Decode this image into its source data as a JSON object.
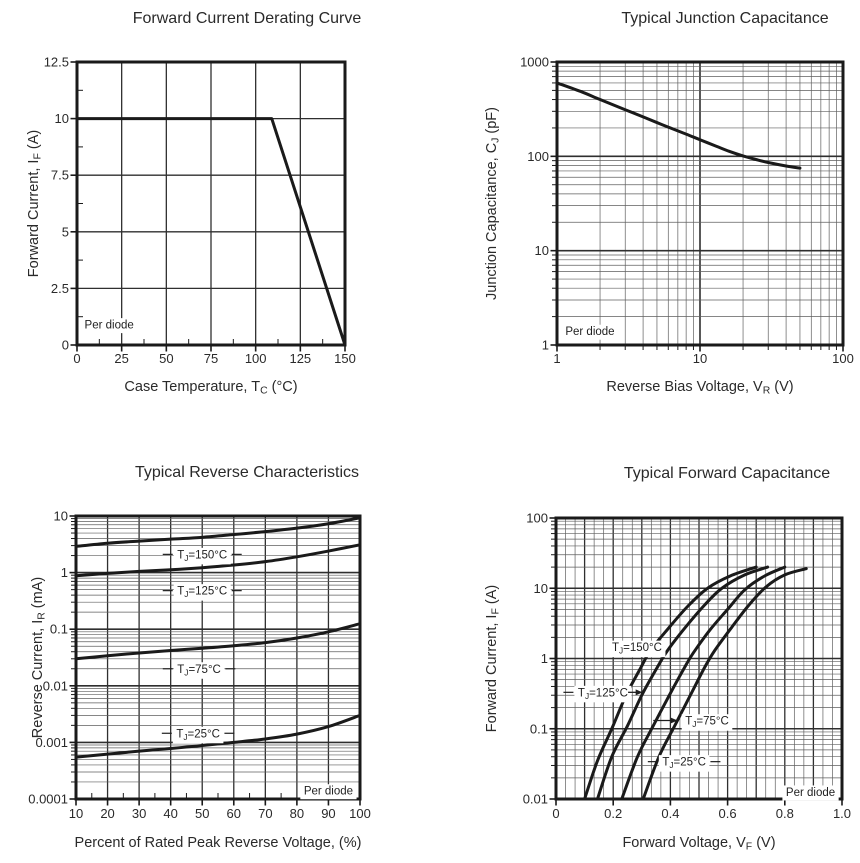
{
  "page": {
    "background": "#ffffff",
    "ink": "#1a1a1a",
    "text_color": "#2a2a2a",
    "grid_major_color": "#2f2f2f",
    "grid_minor_color": "#5f5f5f",
    "note_label": "Per diode"
  },
  "chart_data": [
    {
      "id": "derating",
      "type": "line",
      "title": "Forward Current Derating Curve",
      "xlabel": "Case Temperature, T_C_ (°C)",
      "ylabel": "Forward Current, I_F_ (A)",
      "x": {
        "scale": "linear",
        "min": 0,
        "max": 150,
        "tick_vals": [
          0,
          25,
          50,
          75,
          100,
          125,
          150
        ],
        "tick_labels": [
          "0",
          "25",
          "50",
          "75",
          "100",
          "125",
          "150"
        ],
        "minor_mid": true
      },
      "y": {
        "scale": "linear",
        "min": 0,
        "max": 12.5,
        "tick_vals": [
          0,
          2.5,
          5,
          7.5,
          10,
          12.5
        ],
        "tick_labels": [
          "0",
          "2.5",
          "5",
          "7.5",
          "10",
          "12.5"
        ],
        "minor_mid": true
      },
      "series": [
        {
          "name": "derating-line",
          "smooth": false,
          "points": [
            [
              0,
              10
            ],
            [
              109,
              10
            ],
            [
              150,
              0
            ]
          ]
        }
      ],
      "annotations": [
        {
          "text": "Per diode",
          "x": 18,
          "y": 0.9,
          "box": true
        }
      ]
    },
    {
      "id": "junction-capacitance",
      "type": "line",
      "title": "Typical Junction Capacitance",
      "xlabel": "Reverse Bias Voltage, V_R_ (V)",
      "ylabel": "Junction Capacitance, C_J_ (pF)",
      "x": {
        "scale": "log",
        "min": 1,
        "max": 100,
        "tick_vals": [
          1,
          10,
          100
        ],
        "tick_labels": [
          "1",
          "10",
          "100"
        ]
      },
      "y": {
        "scale": "log",
        "min": 1,
        "max": 1000,
        "tick_vals": [
          1,
          10,
          100,
          1000
        ],
        "tick_labels": [
          "1",
          "10",
          "100",
          "1000"
        ]
      },
      "series": [
        {
          "name": "cj-curve",
          "smooth": true,
          "points": [
            [
              1,
              600
            ],
            [
              1.5,
              480
            ],
            [
              2,
              400
            ],
            [
              3,
              312
            ],
            [
              4,
              262
            ],
            [
              5,
              228
            ],
            [
              6,
              204
            ],
            [
              8,
              172
            ],
            [
              10,
              150
            ],
            [
              13,
              128
            ],
            [
              16,
              113
            ],
            [
              20,
              101
            ],
            [
              25,
              92
            ],
            [
              30,
              86
            ],
            [
              40,
              79
            ],
            [
              50,
              75
            ]
          ]
        }
      ],
      "annotations": [
        {
          "text": "Per diode",
          "x": 1.7,
          "y": 1.4,
          "box": true
        }
      ]
    },
    {
      "id": "reverse-characteristics",
      "type": "line",
      "title": "Typical Reverse Characteristics",
      "xlabel": "Percent of Rated Peak Reverse Voltage, (%)",
      "ylabel": "Reverse Current, I_R_ (mA)",
      "x": {
        "scale": "linear",
        "min": 10,
        "max": 100,
        "tick_vals": [
          10,
          20,
          30,
          40,
          50,
          60,
          70,
          80,
          90,
          100
        ],
        "tick_labels": [
          "10",
          "20",
          "30",
          "40",
          "50",
          "60",
          "70",
          "80",
          "90",
          "100"
        ],
        "minor_mid": true
      },
      "y": {
        "scale": "log",
        "min": 0.0001,
        "max": 10,
        "tick_vals": [
          10,
          1,
          0.1,
          0.01,
          0.001,
          0.0001
        ],
        "tick_labels": [
          "10",
          "1",
          "0.1",
          "0.01",
          "0.001",
          "0.0001"
        ]
      },
      "series": [
        {
          "name": "tj-150",
          "smooth": true,
          "points": [
            [
              10,
              2.9
            ],
            [
              20,
              3.3
            ],
            [
              30,
              3.6
            ],
            [
              40,
              3.9
            ],
            [
              50,
              4.2
            ],
            [
              60,
              4.7
            ],
            [
              70,
              5.3
            ],
            [
              80,
              6.1
            ],
            [
              90,
              7.3
            ],
            [
              100,
              9.3
            ]
          ]
        },
        {
          "name": "tj-125",
          "smooth": true,
          "points": [
            [
              10,
              0.88
            ],
            [
              20,
              0.97
            ],
            [
              30,
              1.05
            ],
            [
              40,
              1.12
            ],
            [
              50,
              1.22
            ],
            [
              60,
              1.36
            ],
            [
              70,
              1.56
            ],
            [
              80,
              1.9
            ],
            [
              90,
              2.4
            ],
            [
              100,
              3.1
            ]
          ]
        },
        {
          "name": "tj-75",
          "smooth": true,
          "points": [
            [
              10,
              0.03
            ],
            [
              20,
              0.034
            ],
            [
              30,
              0.038
            ],
            [
              40,
              0.042
            ],
            [
              50,
              0.046
            ],
            [
              60,
              0.051
            ],
            [
              70,
              0.058
            ],
            [
              80,
              0.07
            ],
            [
              90,
              0.09
            ],
            [
              100,
              0.125
            ]
          ]
        },
        {
          "name": "tj-25",
          "smooth": true,
          "points": [
            [
              10,
              0.00055
            ],
            [
              20,
              0.00062
            ],
            [
              30,
              0.0007
            ],
            [
              40,
              0.00078
            ],
            [
              50,
              0.00088
            ],
            [
              60,
              0.001
            ],
            [
              70,
              0.00115
            ],
            [
              80,
              0.0014
            ],
            [
              90,
              0.0019
            ],
            [
              100,
              0.003
            ]
          ]
        }
      ],
      "annotations": [
        {
          "text": "T_J_=150°C",
          "x": 50,
          "y": 2.1,
          "box": true,
          "dash_left": true,
          "dash_right": true
        },
        {
          "text": "T_J_=125°C",
          "x": 50,
          "y": 0.48,
          "box": true,
          "dash_left": true,
          "dash_right": true
        },
        {
          "text": "T_J_=75°C",
          "x": 49,
          "y": 0.02,
          "box": true,
          "dash_left": true,
          "dash_right": true
        },
        {
          "text": "T_J_=25°C",
          "x": 48.7,
          "y": 0.00145,
          "box": true,
          "dash_left": true,
          "dash_right": true
        },
        {
          "text": "Per diode",
          "x": 90,
          "y": 0.00014,
          "box": true
        }
      ]
    },
    {
      "id": "forward-capacitance",
      "type": "line",
      "title": "Typical Forward Capacitance",
      "xlabel": "Forward Voltage, V_F_ (V)",
      "ylabel": "Forward Current, I_F_ (A)",
      "x": {
        "scale": "linear",
        "min": 0,
        "max": 1.0,
        "tick_vals": [
          0,
          0.2,
          0.4,
          0.6,
          0.8,
          1.0
        ],
        "tick_labels": [
          "0",
          "0.2",
          "0.4",
          "0.6",
          "0.8",
          "1.0"
        ],
        "minor_step": 0.033333,
        "major_step": 0.1
      },
      "y": {
        "scale": "log",
        "min": 0.01,
        "max": 100,
        "tick_vals": [
          100,
          10,
          1,
          0.1,
          0.01
        ],
        "tick_labels": [
          "100",
          "10",
          "1",
          "0.1",
          "0.01"
        ]
      },
      "series": [
        {
          "name": "tj-150",
          "smooth": true,
          "points": [
            [
              0.1,
              0.01
            ],
            [
              0.145,
              0.035
            ],
            [
              0.195,
              0.1
            ],
            [
              0.245,
              0.3
            ],
            [
              0.295,
              0.72
            ],
            [
              0.33,
              1.3
            ],
            [
              0.39,
              2.6
            ],
            [
              0.46,
              5.5
            ],
            [
              0.53,
              10
            ],
            [
              0.61,
              15
            ],
            [
              0.7,
              20
            ]
          ]
        },
        {
          "name": "tj-125",
          "smooth": true,
          "points": [
            [
              0.145,
              0.01
            ],
            [
              0.195,
              0.04
            ],
            [
              0.25,
              0.11
            ],
            [
              0.3,
              0.3
            ],
            [
              0.35,
              0.7
            ],
            [
              0.39,
              1.3
            ],
            [
              0.45,
              2.7
            ],
            [
              0.52,
              5.8
            ],
            [
              0.58,
              10
            ],
            [
              0.66,
              15.5
            ],
            [
              0.74,
              20
            ]
          ]
        },
        {
          "name": "tj-75",
          "smooth": true,
          "points": [
            [
              0.23,
              0.01
            ],
            [
              0.285,
              0.04
            ],
            [
              0.34,
              0.11
            ],
            [
              0.4,
              0.32
            ],
            [
              0.45,
              0.75
            ],
            [
              0.48,
              1.2
            ],
            [
              0.54,
              2.6
            ],
            [
              0.6,
              5
            ],
            [
              0.66,
              9.5
            ],
            [
              0.73,
              15
            ],
            [
              0.8,
              20
            ]
          ]
        },
        {
          "name": "tj-25",
          "smooth": true,
          "points": [
            [
              0.305,
              0.01
            ],
            [
              0.36,
              0.04
            ],
            [
              0.415,
              0.11
            ],
            [
              0.475,
              0.33
            ],
            [
              0.52,
              0.75
            ],
            [
              0.555,
              1.3
            ],
            [
              0.615,
              2.8
            ],
            [
              0.675,
              5.8
            ],
            [
              0.735,
              10.5
            ],
            [
              0.8,
              15.5
            ],
            [
              0.875,
              19
            ]
          ]
        }
      ],
      "annotations": [
        {
          "text": "T_J_=150°C",
          "x": 0.283,
          "y": 1.45,
          "box": true
        },
        {
          "text": "T_J_=125°C",
          "x": 0.164,
          "y": 0.33,
          "box": true,
          "dash_left": true,
          "arrow": {
            "x1": 0.252,
            "y1": 0.33,
            "x2": 0.303,
            "y2": 0.33
          }
        },
        {
          "text": "T_J_=75°C",
          "x": 0.528,
          "y": 0.13,
          "box": true,
          "arrow": {
            "x1": 0.34,
            "y1": 0.131,
            "x2": 0.425,
            "y2": 0.131
          }
        },
        {
          "text": "T_J_=25°C",
          "x": 0.448,
          "y": 0.034,
          "box": true,
          "dash_left": true,
          "dash_right": true
        },
        {
          "text": "Per diode",
          "x": 0.89,
          "y": 0.0126,
          "box": true
        }
      ]
    }
  ]
}
